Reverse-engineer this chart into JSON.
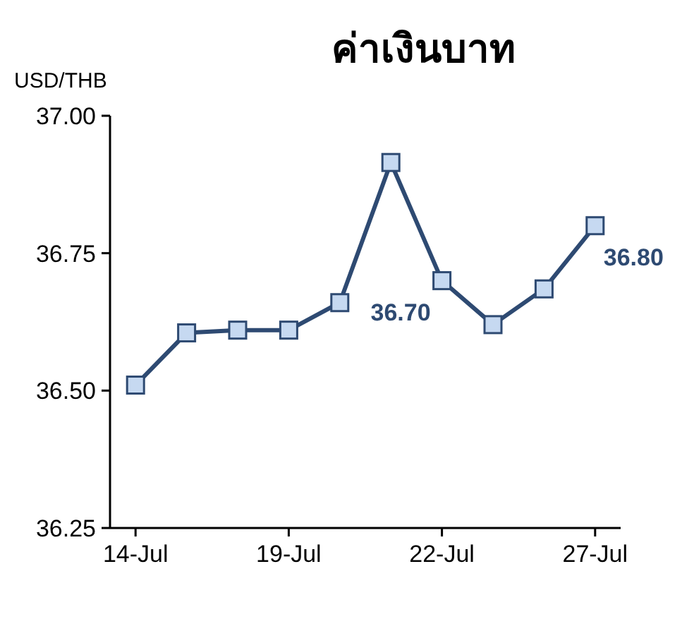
{
  "chart_data": {
    "type": "line",
    "title": "ค่าเงินบาท",
    "ylabel": "USD/THB",
    "categories": [
      "14-Jul",
      null,
      null,
      "19-Jul",
      null,
      null,
      "22-Jul",
      null,
      null,
      "27-Jul"
    ],
    "series": [
      {
        "color": "#2e4a72",
        "values": [
          36.51,
          36.605,
          36.61,
          36.61,
          36.66,
          36.915,
          36.7,
          36.62,
          36.685,
          36.8
        ],
        "value_labels": [
          null,
          null,
          null,
          null,
          null,
          null,
          "36.70",
          null,
          null,
          "36.80"
        ]
      }
    ],
    "ylim": [
      36.25,
      37.0
    ],
    "yticks": [
      {
        "value": 36.25,
        "label": "36.25"
      },
      {
        "value": 36.5,
        "label": "36.50"
      },
      {
        "value": 36.75,
        "label": "36.75"
      },
      {
        "value": 37.0,
        "label": "37.00"
      }
    ],
    "marker": "square",
    "grid": false
  }
}
